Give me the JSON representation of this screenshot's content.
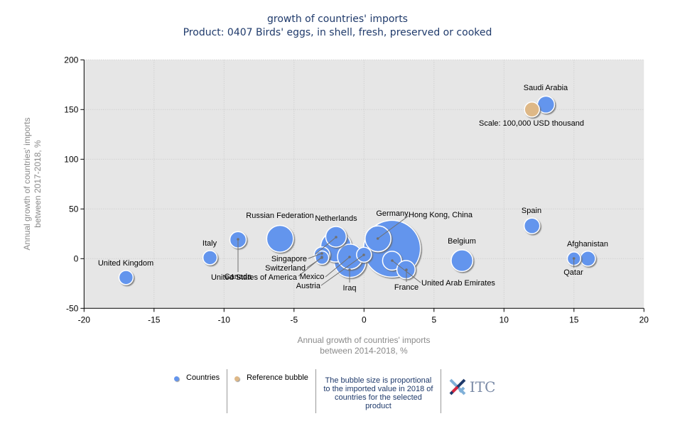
{
  "title": {
    "line1": "growth of countries' imports",
    "line2": "Product: 0407 Birds' eggs, in shell, fresh, preserved or cooked"
  },
  "colors": {
    "bubble": "#6495ED",
    "reference_bubble": "#DEB887",
    "plot_background": "#E6E6E6",
    "title_text": "#1f3a6b",
    "axis_title_text": "#8a8a8a"
  },
  "chart_data": {
    "type": "scatter",
    "subtype": "bubble",
    "title": "growth of countries' imports",
    "subtitle": "Product: 0407 Birds' eggs, in shell, fresh, preserved or cooked",
    "xlabel": "Annual growth of countries' imports between 2014-2018, %",
    "ylabel": "Annual growth of countries' imports between 2017-2018, %",
    "xlabel_lines": [
      "Annual growth of countries' imports",
      "between 2014-2018, %"
    ],
    "ylabel_lines": [
      "Annual growth of countries' imports",
      "between 2017-2018, %"
    ],
    "xlim": [
      -20,
      20
    ],
    "ylim": [
      -50,
      200
    ],
    "xticks": [
      -20,
      -15,
      -10,
      -5,
      0,
      5,
      10,
      15,
      20
    ],
    "yticks": [
      -50,
      0,
      50,
      100,
      150,
      200
    ],
    "grid": true,
    "size_unit": "relative imported value 2018 (reference = 100,000 USD thousand)",
    "series": [
      {
        "name": "Countries",
        "points": [
          {
            "label": "Hong Kong, China",
            "x": 2,
            "y": 10,
            "size": 14.5
          },
          {
            "label": "Iraq",
            "x": -1,
            "y": -3,
            "size": 4.5
          },
          {
            "label": "United States of America",
            "x": -2,
            "y": 12,
            "size": 4.2
          },
          {
            "label": "Russian Federation",
            "x": -6,
            "y": 20,
            "size": 3.2
          },
          {
            "label": "Germany",
            "x": 1,
            "y": 20,
            "size": 3.0
          },
          {
            "label": "Mexico",
            "x": -1,
            "y": 2,
            "size": 2.8
          },
          {
            "label": "Belgium",
            "x": 7,
            "y": -2,
            "size": 2.1
          },
          {
            "label": "Netherlands",
            "x": -2,
            "y": 22,
            "size": 1.9
          },
          {
            "label": "United Arab Emirates",
            "x": 2,
            "y": -2,
            "size": 1.6
          },
          {
            "label": "France",
            "x": 3,
            "y": -11,
            "size": 1.5
          },
          {
            "label": "Saudi Arabia",
            "x": 13,
            "y": 155,
            "size": 1.3
          },
          {
            "label": "Canada",
            "x": -9,
            "y": 19,
            "size": 1.2
          },
          {
            "label": "Spain",
            "x": 12,
            "y": 33,
            "size": 1.1
          },
          {
            "label": "Singapore",
            "x": -3,
            "y": 4,
            "size": 1.1
          },
          {
            "label": "Austria",
            "x": 0,
            "y": 4,
            "size": 1.0
          },
          {
            "label": "Afghanistan",
            "x": 16,
            "y": 0,
            "size": 1.0
          },
          {
            "label": "Italy",
            "x": -11,
            "y": 1,
            "size": 0.9
          },
          {
            "label": "United Kingdom",
            "x": -17,
            "y": -19,
            "size": 0.9
          },
          {
            "label": "Switzerland",
            "x": -3,
            "y": 1,
            "size": 0.8
          },
          {
            "label": "Qatar",
            "x": 15,
            "y": 0,
            "size": 0.8
          }
        ]
      },
      {
        "name": "Reference bubble",
        "points": [
          {
            "label": "Scale: 100,000 USD thousand",
            "x": 12,
            "y": 150,
            "size": 1.0
          }
        ]
      }
    ]
  },
  "legend": {
    "countries_label": "Countries",
    "reference_label": "Reference bubble",
    "note": "The bubble size is proportional to the imported value in 2018 of countries for the selected product",
    "logo_text": "ITC"
  }
}
